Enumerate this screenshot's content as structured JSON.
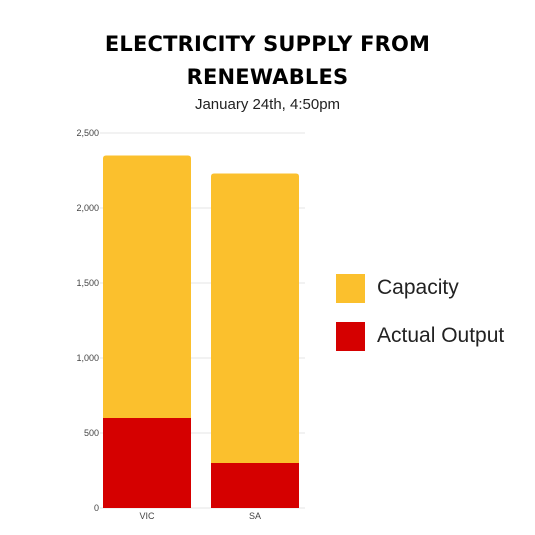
{
  "title_line1": "ELECTRICITY SUPPLY FROM",
  "title_line2": "RENEWABLES",
  "subtitle": "January 24th, 4:50pm",
  "colors": {
    "capacity": "#FBC02D",
    "output": "#D50000",
    "grid": "#e6e6e6"
  },
  "chart_data": {
    "type": "bar",
    "stacked": true,
    "categories": [
      "VIC",
      "SA"
    ],
    "series": [
      {
        "name": "Actual Output",
        "values": [
          600,
          300
        ]
      },
      {
        "name": "Capacity",
        "values": [
          1750,
          1930
        ]
      }
    ],
    "ylim": [
      0,
      2500
    ],
    "yticks": [
      0,
      500,
      1000,
      1500,
      2000,
      2500
    ],
    "ytick_labels": [
      "0",
      "500",
      "1,000",
      "1,500",
      "2,000",
      "2,500"
    ],
    "grid": true,
    "legend_position": "right"
  },
  "legend": [
    {
      "label": "Capacity",
      "color": "#FBC02D"
    },
    {
      "label": "Actual Output",
      "color": "#D50000"
    }
  ]
}
